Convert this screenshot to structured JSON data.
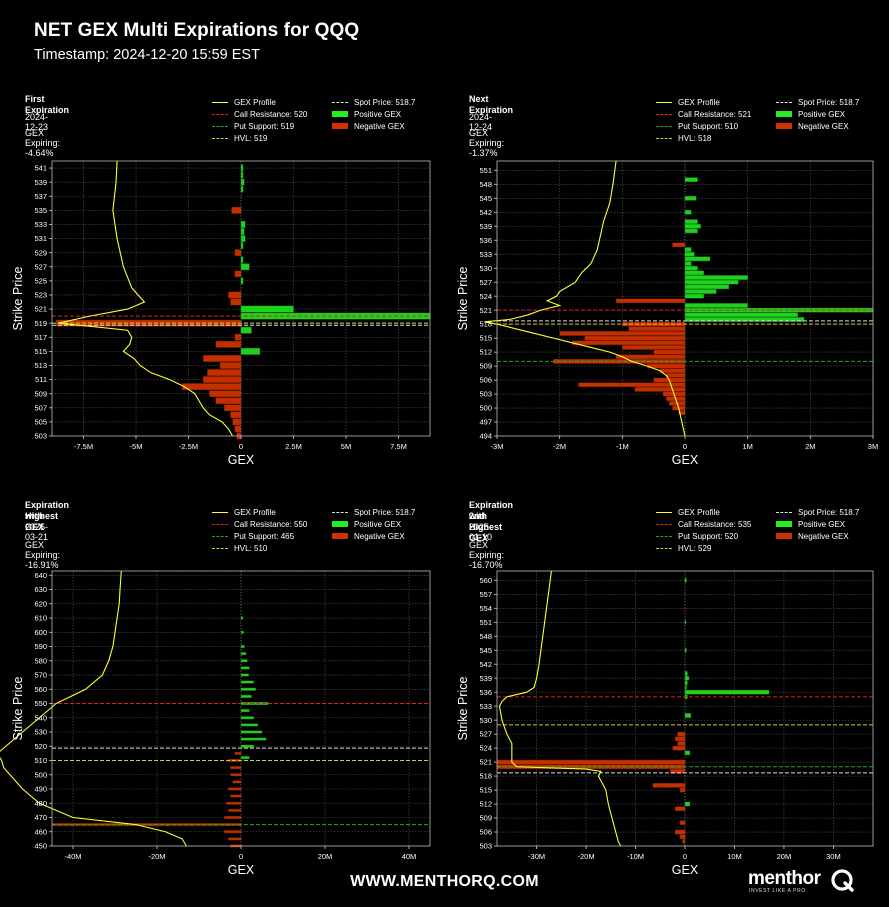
{
  "header": {
    "title": "NET GEX Multi Expirations for QQQ",
    "timestamp": "Timestamp: 2024-12-20 15:59 EST"
  },
  "footer": {
    "url": "WWW.MENTHORQ.COM",
    "logo_text": "menthor",
    "logo_tagline": "INVEST LIKE A PRO"
  },
  "colors": {
    "profile": "#ffff33",
    "call_resistance": "#e02020",
    "put_support": "#22aa22",
    "hvl": "#cccc33",
    "spot": "#dddddd",
    "positive": "#22ee22",
    "negative": "#cc3300"
  },
  "panels": [
    {
      "title_lines": [
        "First Expiration"
      ],
      "date": "2024-12-23",
      "gex_expiring": "GEX Expiring: -4.64%",
      "legend": {
        "profile": "GEX Profile",
        "call": "Call Resistance: 520",
        "put": "Put Support: 519",
        "hvl": "HVL: 519",
        "spot": "Spot Price: 518.7",
        "pos": "Positive GEX",
        "neg": "Negative GEX"
      }
    },
    {
      "title_lines": [
        "Next Expiration"
      ],
      "date": "2024-12-24",
      "gex_expiring": "GEX Expiring: -1.37%",
      "legend": {
        "profile": "GEX Profile",
        "call": "Call Resistance: 521",
        "put": "Put Support: 510",
        "hvl": "HVL: 518",
        "spot": "Spot Price: 518.7",
        "pos": "Positive GEX",
        "neg": "Negative GEX"
      }
    },
    {
      "title_lines": [
        "Expiration with",
        "Highest GEX"
      ],
      "date": "2025-03-21",
      "gex_expiring": "GEX Expiring: -16.91%",
      "legend": {
        "profile": "GEX Profile",
        "call": "Call Resistance: 550",
        "put": "Put Support: 465",
        "hvl": "HVL: 510",
        "spot": "Spot Price: 518.7",
        "pos": "Positive GEX",
        "neg": "Negative GEX"
      }
    },
    {
      "title_lines": [
        "Expiration with",
        "2nd Highest GEX"
      ],
      "date": "2025-01-10",
      "gex_expiring": "GEX Expiring: -16.70%",
      "legend": {
        "profile": "GEX Profile",
        "call": "Call Resistance: 535",
        "put": "Put Support: 520",
        "hvl": "HVL: 529",
        "spot": "Spot Price: 518.7",
        "pos": "Positive GEX",
        "neg": "Negative GEX"
      }
    }
  ],
  "chart_data": [
    {
      "type": "bar",
      "orientation": "horizontal",
      "xlabel": "GEX",
      "ylabel": "Strike Price",
      "xlim": [
        -9000000,
        9000000
      ],
      "ylim": [
        503,
        542
      ],
      "xticks": [
        -7500000,
        -5000000,
        -2500000,
        0,
        2500000,
        5000000,
        7500000
      ],
      "xtick_labels": [
        "-7.5M",
        "-5M",
        "-2.5M",
        "0",
        "2.5M",
        "5M",
        "7.5M"
      ],
      "yticks": [
        503,
        505,
        507,
        509,
        511,
        513,
        515,
        517,
        519,
        521,
        523,
        525,
        527,
        529,
        531,
        533,
        535,
        537,
        539,
        541
      ],
      "lines": {
        "call_resistance": 520,
        "put_support": 519,
        "hvl": 519,
        "spot": 518.7
      },
      "bar_data": [
        [
          541,
          0.1
        ],
        [
          540,
          0.1
        ],
        [
          539,
          0.15
        ],
        [
          538,
          0.1
        ],
        [
          535,
          -0.45
        ],
        [
          533,
          0.2
        ],
        [
          532,
          0.15
        ],
        [
          531,
          0.2
        ],
        [
          530,
          0.1
        ],
        [
          529,
          -0.3
        ],
        [
          528,
          0.1
        ],
        [
          527,
          0.4
        ],
        [
          526,
          -0.3
        ],
        [
          525,
          0.1
        ],
        [
          523,
          -0.6
        ],
        [
          522,
          -0.5
        ],
        [
          521,
          2.5
        ],
        [
          520,
          9.0
        ],
        [
          519,
          -8.8
        ],
        [
          518,
          0.5
        ],
        [
          517,
          -0.3
        ],
        [
          516,
          -1.2
        ],
        [
          515,
          0.9
        ],
        [
          514,
          -1.8
        ],
        [
          513,
          -1.0
        ],
        [
          512,
          -1.6
        ],
        [
          511,
          -1.8
        ],
        [
          510,
          -2.8
        ],
        [
          509,
          -1.5
        ],
        [
          508,
          -1.2
        ],
        [
          507,
          -0.8
        ],
        [
          506,
          -0.5
        ],
        [
          505,
          -0.4
        ],
        [
          504,
          -0.3
        ],
        [
          503,
          -0.2
        ]
      ],
      "profile": [
        [
          542,
          -5.9
        ],
        [
          539,
          -5.95
        ],
        [
          535,
          -6.1
        ],
        [
          531,
          -5.9
        ],
        [
          527,
          -5.6
        ],
        [
          524,
          -5.2
        ],
        [
          522,
          -4.6
        ],
        [
          521,
          -5.4
        ],
        [
          520,
          -7.2
        ],
        [
          519,
          -8.7
        ],
        [
          518.5,
          -7.0
        ],
        [
          518,
          -5.4
        ],
        [
          517,
          -5.2
        ],
        [
          516,
          -5.3
        ],
        [
          515,
          -5.6
        ],
        [
          514,
          -5.1
        ],
        [
          513,
          -4.8
        ],
        [
          512,
          -4.3
        ],
        [
          511,
          -3.4
        ],
        [
          510,
          -2.7
        ],
        [
          509,
          -2.2
        ],
        [
          508,
          -2.0
        ],
        [
          507,
          -1.8
        ],
        [
          506,
          -1.5
        ],
        [
          505,
          -0.9
        ],
        [
          504,
          -0.6
        ],
        [
          503,
          -0.4
        ]
      ]
    },
    {
      "type": "bar",
      "orientation": "horizontal",
      "xlabel": "GEX",
      "ylabel": "Strike Price",
      "xlim": [
        -3000000,
        3000000
      ],
      "ylim": [
        494,
        553
      ],
      "xticks": [
        -3000000,
        -2000000,
        -1000000,
        0,
        1000000,
        2000000,
        3000000
      ],
      "xtick_labels": [
        "-3M",
        "-2M",
        "-1M",
        "0",
        "1M",
        "2M",
        "3M"
      ],
      "yticks": [
        494,
        497,
        500,
        503,
        506,
        509,
        512,
        515,
        518,
        521,
        524,
        527,
        530,
        533,
        536,
        539,
        542,
        545,
        548,
        551
      ],
      "lines": {
        "call_resistance": 521,
        "put_support": 510,
        "hvl": 518,
        "spot": 518.7
      },
      "bar_data": [
        [
          549,
          0.2
        ],
        [
          545,
          0.18
        ],
        [
          542,
          0.1
        ],
        [
          540,
          0.2
        ],
        [
          539,
          0.25
        ],
        [
          538,
          0.2
        ],
        [
          535,
          -0.2
        ],
        [
          534,
          0.1
        ],
        [
          533,
          0.15
        ],
        [
          532,
          0.4
        ],
        [
          531,
          0.1
        ],
        [
          530,
          0.2
        ],
        [
          529,
          0.3
        ],
        [
          528,
          1.0
        ],
        [
          527,
          0.85
        ],
        [
          526,
          0.7
        ],
        [
          525,
          0.5
        ],
        [
          524,
          0.3
        ],
        [
          523,
          -1.1
        ],
        [
          522,
          1.0
        ],
        [
          521,
          3.2
        ],
        [
          520,
          1.8
        ],
        [
          519,
          1.9
        ],
        [
          518,
          -1.0
        ],
        [
          517,
          -0.9
        ],
        [
          516,
          -2.0
        ],
        [
          515,
          -1.6
        ],
        [
          514,
          -1.8
        ],
        [
          513,
          -1.0
        ],
        [
          512,
          -0.5
        ],
        [
          511,
          -1.1
        ],
        [
          510,
          -2.1
        ],
        [
          509,
          -0.6
        ],
        [
          508,
          -0.4
        ],
        [
          507,
          -0.3
        ],
        [
          506,
          -0.5
        ],
        [
          505,
          -1.7
        ],
        [
          504,
          -0.8
        ],
        [
          503,
          -0.35
        ],
        [
          502,
          -0.3
        ],
        [
          501,
          -0.25
        ],
        [
          500,
          -0.2
        ],
        [
          499,
          -0.1
        ]
      ],
      "profile": [
        [
          553,
          -1.1
        ],
        [
          548,
          -1.15
        ],
        [
          544,
          -1.2
        ],
        [
          540,
          -1.3
        ],
        [
          537,
          -1.35
        ],
        [
          534,
          -1.4
        ],
        [
          531,
          -1.5
        ],
        [
          529,
          -1.65
        ],
        [
          527,
          -1.75
        ],
        [
          525,
          -2.0
        ],
        [
          524,
          -2.05
        ],
        [
          523,
          -2.2
        ],
        [
          522,
          -2.0
        ],
        [
          521,
          -2.3
        ],
        [
          520,
          -2.5
        ],
        [
          519,
          -2.8
        ],
        [
          518.5,
          -3.2
        ],
        [
          518,
          -3.0
        ],
        [
          517,
          -2.7
        ],
        [
          516,
          -2.4
        ],
        [
          515,
          -2.1
        ],
        [
          514,
          -1.8
        ],
        [
          513,
          -1.5
        ],
        [
          512,
          -1.2
        ],
        [
          511,
          -1.0
        ],
        [
          510,
          -0.85
        ],
        [
          509,
          -0.6
        ],
        [
          508,
          -0.4
        ],
        [
          507,
          -0.3
        ],
        [
          506,
          -0.25
        ],
        [
          504,
          -0.2
        ],
        [
          502,
          -0.15
        ],
        [
          500,
          -0.1
        ],
        [
          497,
          -0.05
        ],
        [
          494,
          0.0
        ]
      ]
    },
    {
      "type": "bar",
      "orientation": "horizontal",
      "xlabel": "GEX",
      "ylabel": "Strike Price",
      "xlim": [
        -45000000,
        45000000
      ],
      "ylim": [
        450,
        643
      ],
      "xticks": [
        -40000000,
        -20000000,
        0,
        20000000,
        40000000
      ],
      "xtick_labels": [
        "-40M",
        "-20M",
        "0",
        "20M",
        "40M"
      ],
      "yticks": [
        450,
        460,
        470,
        480,
        490,
        500,
        510,
        520,
        530,
        540,
        550,
        560,
        570,
        580,
        590,
        600,
        610,
        620,
        630,
        640
      ],
      "lines": {
        "call_resistance": 550,
        "put_support": 465,
        "hvl": 510,
        "spot": 518.7
      },
      "bar_data": [
        [
          610,
          0.5
        ],
        [
          600,
          0.6
        ],
        [
          590,
          0.8
        ],
        [
          585,
          1.2
        ],
        [
          580,
          1.5
        ],
        [
          575,
          2.0
        ],
        [
          570,
          1.8
        ],
        [
          565,
          3.0
        ],
        [
          560,
          3.5
        ],
        [
          555,
          2.5
        ],
        [
          550,
          6.5
        ],
        [
          545,
          2.0
        ],
        [
          540,
          3.0
        ],
        [
          535,
          4.0
        ],
        [
          530,
          5.0
        ],
        [
          525,
          6.0
        ],
        [
          520,
          3.0
        ],
        [
          515,
          -1.5
        ],
        [
          512,
          2.0
        ],
        [
          510,
          -3.0
        ],
        [
          505,
          -2.5
        ],
        [
          500,
          -2.5
        ],
        [
          495,
          -2.0
        ],
        [
          490,
          -3.0
        ],
        [
          485,
          -2.5
        ],
        [
          480,
          -3.5
        ],
        [
          475,
          -3.0
        ],
        [
          470,
          -4.0
        ],
        [
          465,
          -45.0
        ],
        [
          460,
          -4.0
        ],
        [
          455,
          -3.0
        ],
        [
          450,
          -2.5
        ]
      ],
      "profile": [
        [
          643,
          -28.5
        ],
        [
          630,
          -28.8
        ],
        [
          620,
          -29.0
        ],
        [
          610,
          -29.5
        ],
        [
          600,
          -30.0
        ],
        [
          590,
          -30.5
        ],
        [
          580,
          -31.5
        ],
        [
          570,
          -33.0
        ],
        [
          560,
          -37.0
        ],
        [
          550,
          -44.0
        ],
        [
          545,
          -46.0
        ],
        [
          540,
          -48.0
        ],
        [
          530,
          -52.0
        ],
        [
          525,
          -54.0
        ],
        [
          520,
          -56.0
        ],
        [
          515,
          -58.0
        ],
        [
          510,
          -57.0
        ],
        [
          505,
          -56.5
        ],
        [
          500,
          -55.0
        ],
        [
          490,
          -52.0
        ],
        [
          480,
          -48.0
        ],
        [
          470,
          -40.0
        ],
        [
          465,
          -25.0
        ],
        [
          460,
          -18.0
        ],
        [
          455,
          -14.0
        ],
        [
          450,
          -13.0
        ]
      ]
    },
    {
      "type": "bar",
      "orientation": "horizontal",
      "xlabel": "GEX",
      "ylabel": "Strike Price",
      "xlim": [
        -38000000,
        38000000
      ],
      "ylim": [
        503,
        562
      ],
      "xticks": [
        -30000000,
        -20000000,
        -10000000,
        0,
        10000000,
        20000000,
        30000000
      ],
      "xtick_labels": [
        "-30M",
        "-20M",
        "-10M",
        "0",
        "10M",
        "20M",
        "30M"
      ],
      "yticks": [
        503,
        506,
        509,
        512,
        515,
        518,
        521,
        524,
        527,
        530,
        533,
        536,
        539,
        542,
        545,
        548,
        551,
        554,
        557,
        560
      ],
      "lines": {
        "call_resistance": 535,
        "put_support": 520,
        "hvl": 529,
        "spot": 518.7
      },
      "bar_data": [
        [
          560,
          0.3
        ],
        [
          551,
          0.2
        ],
        [
          545,
          0.3
        ],
        [
          540,
          0.5
        ],
        [
          539,
          0.8
        ],
        [
          538,
          0.5
        ],
        [
          537,
          0.3
        ],
        [
          536,
          17.0
        ],
        [
          535,
          0.5
        ],
        [
          531,
          1.2
        ],
        [
          527,
          -1.5
        ],
        [
          526,
          -2.0
        ],
        [
          525,
          -1.5
        ],
        [
          524,
          -2.5
        ],
        [
          523,
          1.0
        ],
        [
          521,
          -38.0
        ],
        [
          520,
          -38.0
        ],
        [
          519,
          -3.0
        ],
        [
          516,
          -6.5
        ],
        [
          515,
          -1.0
        ],
        [
          512,
          1.0
        ],
        [
          511,
          -2.0
        ],
        [
          508,
          -1.0
        ],
        [
          506,
          -2.0
        ],
        [
          505,
          -1.0
        ],
        [
          504,
          -0.5
        ]
      ],
      "profile": [
        [
          562,
          -27.0
        ],
        [
          558,
          -27.5
        ],
        [
          554,
          -28.0
        ],
        [
          550,
          -28.5
        ],
        [
          546,
          -29.0
        ],
        [
          542,
          -29.5
        ],
        [
          539,
          -30.0
        ],
        [
          537,
          -30.5
        ],
        [
          536,
          -32.0
        ],
        [
          535,
          -36.0
        ],
        [
          534,
          -37.0
        ],
        [
          533,
          -37.5
        ],
        [
          530,
          -37.0
        ],
        [
          527,
          -36.0
        ],
        [
          525,
          -35.0
        ],
        [
          523,
          -35.0
        ],
        [
          521,
          -35.0
        ],
        [
          520,
          -34.0
        ],
        [
          519.5,
          -20.0
        ],
        [
          519,
          -17.0
        ],
        [
          518,
          -17.5
        ],
        [
          516,
          -16.5
        ],
        [
          515,
          -16.0
        ],
        [
          512,
          -15.5
        ],
        [
          510,
          -15.0
        ],
        [
          508,
          -14.5
        ],
        [
          506,
          -14.0
        ],
        [
          504,
          -13.5
        ],
        [
          503,
          -13.0
        ]
      ]
    }
  ]
}
